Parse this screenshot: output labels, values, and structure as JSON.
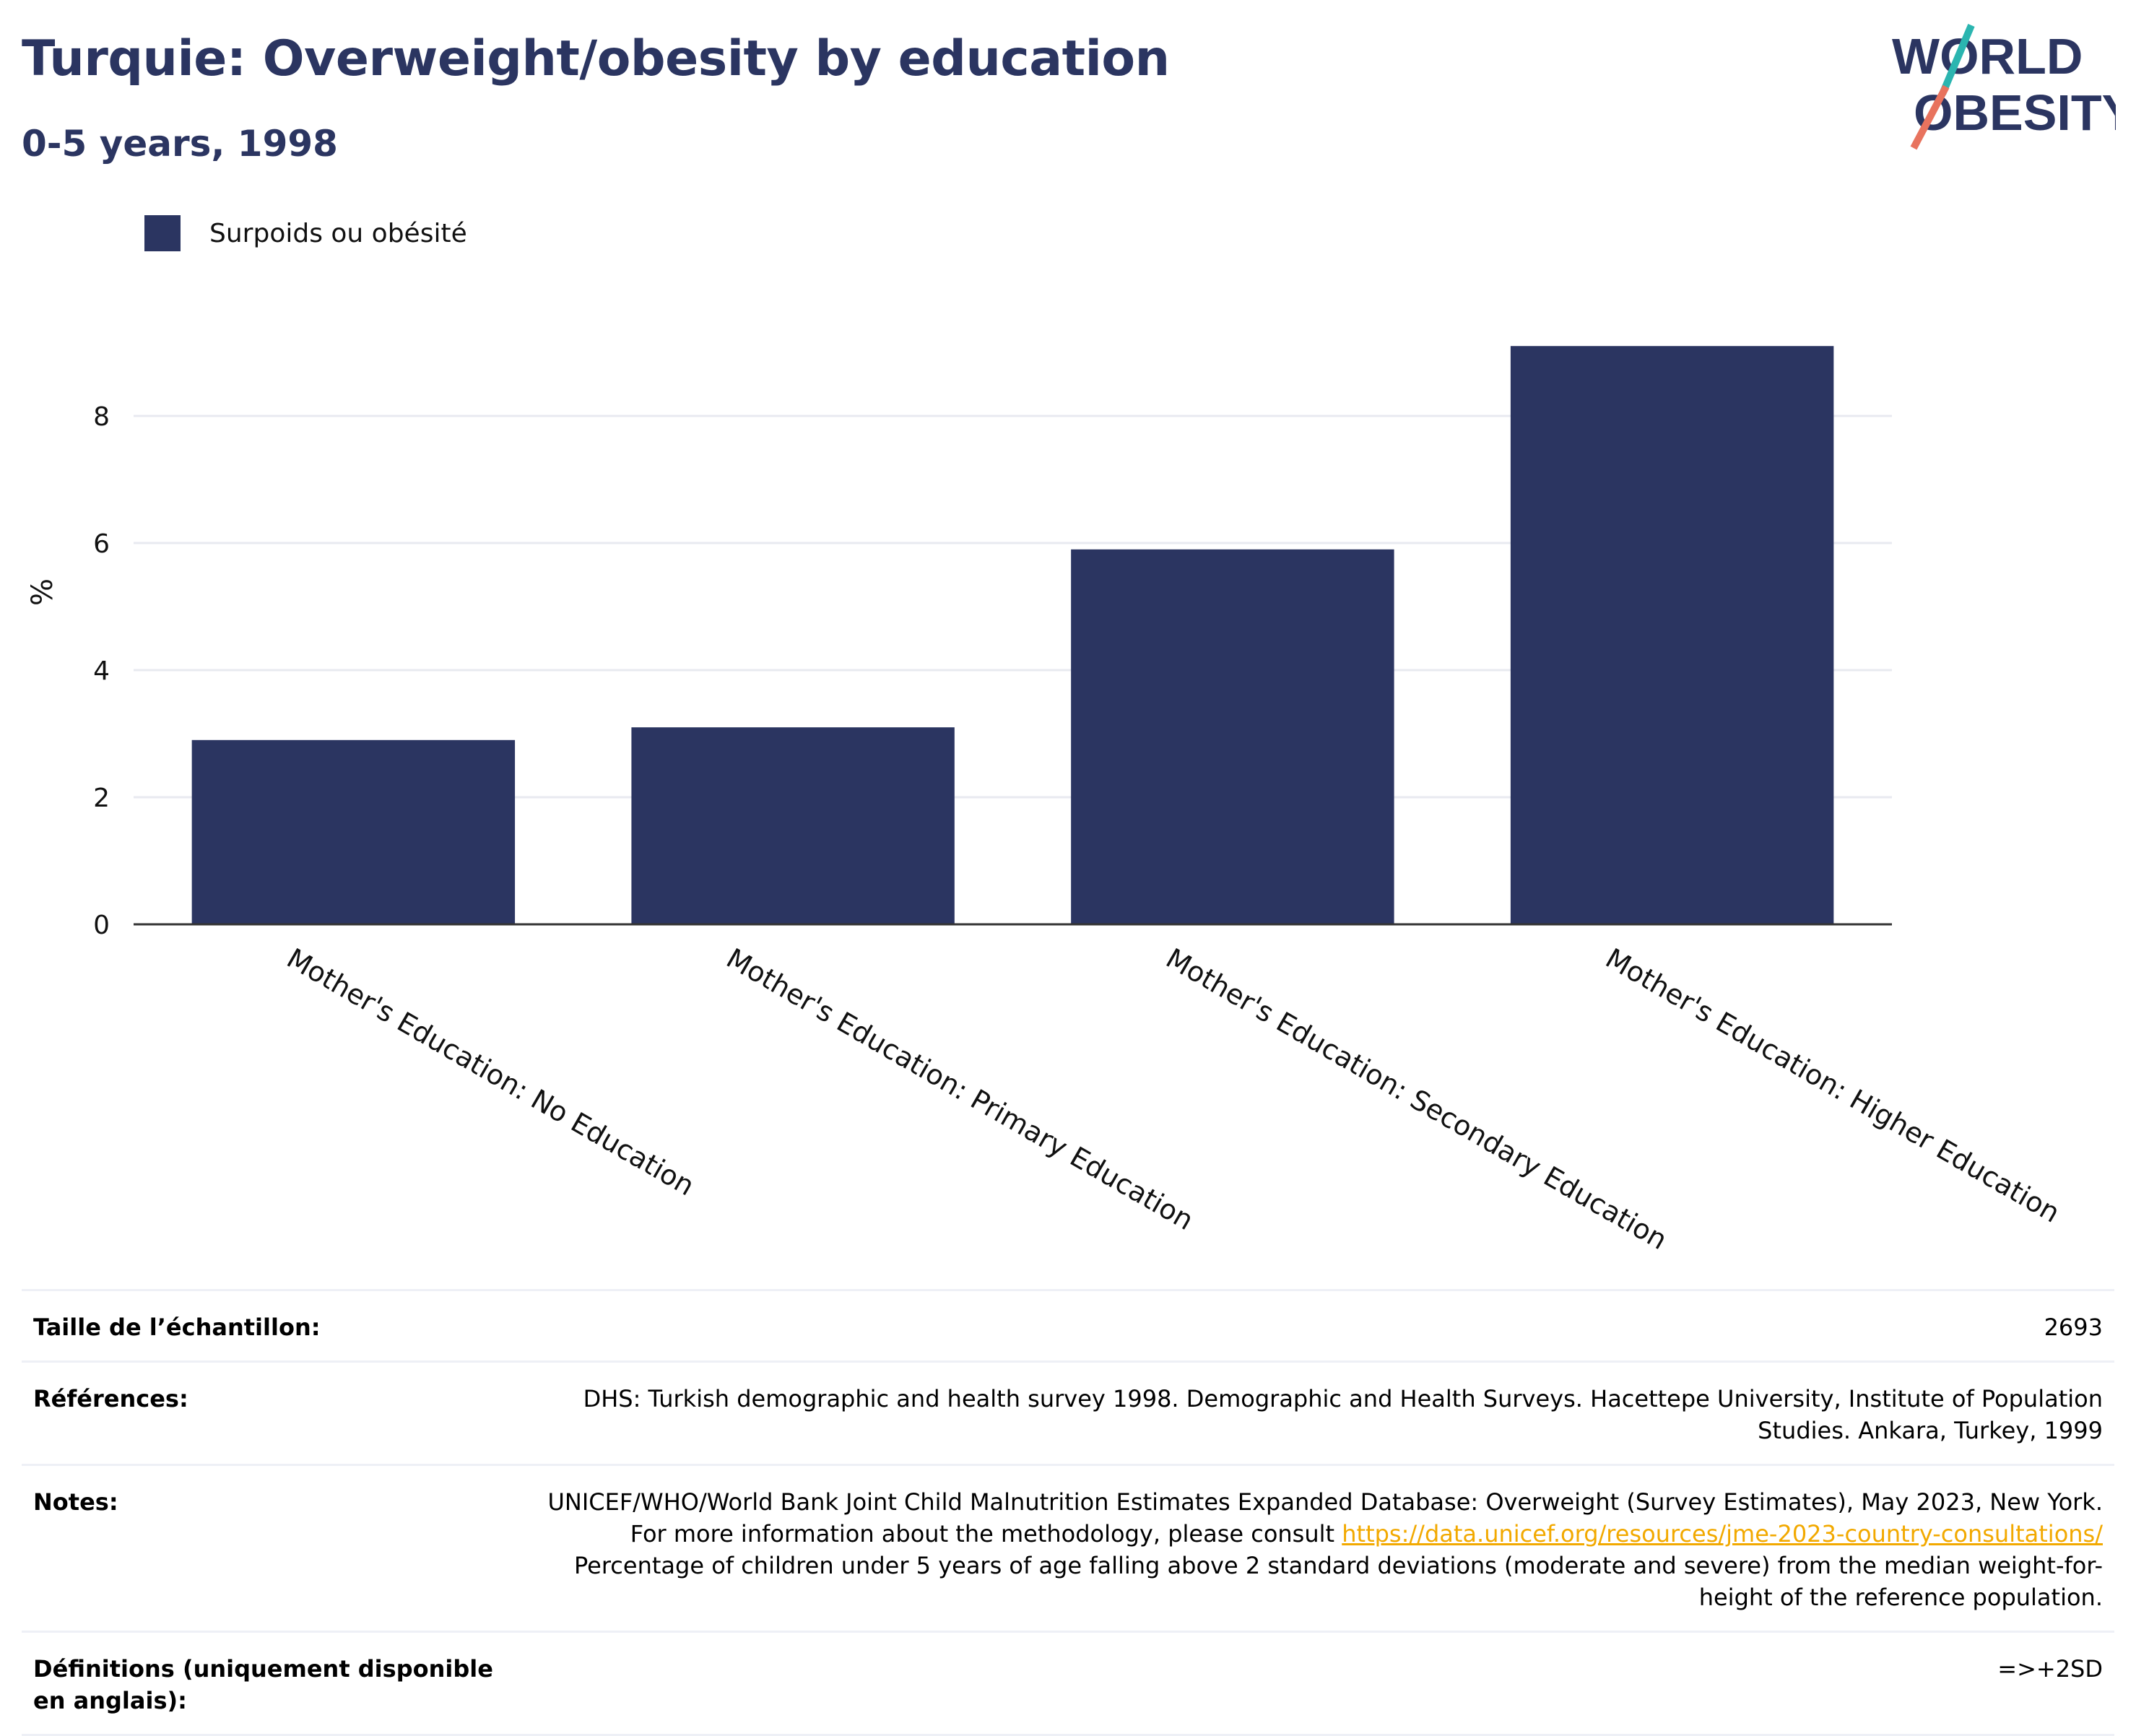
{
  "header": {
    "title": "Turquie: Overweight/obesity by education",
    "subtitle": "0-5 years, 1998"
  },
  "logo": {
    "line1": "WORLD",
    "line2": "OBESITY"
  },
  "colors": {
    "bar": "#2b3561",
    "title": "#2b3561",
    "link": "#f2a900",
    "logo_teal": "#2bb5b0",
    "logo_coral": "#e8735e"
  },
  "legend": {
    "label": "Surpoids ou obésité"
  },
  "chart_data": {
    "type": "bar",
    "categories": [
      "Mother's Education: No Education",
      "Mother's Education: Primary Education",
      "Mother's Education: Secondary Education",
      "Mother's Education: Higher Education"
    ],
    "series": [
      {
        "name": "Surpoids ou obésité",
        "values": [
          2.9,
          3.1,
          5.9,
          9.1
        ]
      }
    ],
    "ylabel": "%",
    "ylim": [
      0,
      10
    ],
    "yticks": [
      0,
      2,
      4,
      6,
      8
    ],
    "grid": true,
    "legend_position": "top-left"
  },
  "meta": {
    "sample_label": "Taille de l’échantillon:",
    "sample_value": "2693",
    "references_label": "Références:",
    "references_value": "DHS: Turkish demographic and health survey 1998. Demographic and Health Surveys. Hacettepe University, Institute of Population Studies. Ankara, Turkey, 1999",
    "notes_label": "Notes:",
    "notes_text_before": "UNICEF/WHO/World Bank Joint Child Malnutrition Estimates Expanded Database: Overweight (Survey Estimates), May 2023, New York. For more information about the methodology, please consult ",
    "notes_link": "https://data.unicef.org/resources/jme-2023-country-consultations/",
    "notes_text_after": " Percentage of children under 5 years of age falling above 2 standard deviations (moderate and severe) from the median weight-for-height of the reference population.",
    "definitions_label": "Définitions (uniquement disponible en anglais):",
    "definitions_value": "=>+2SD"
  }
}
